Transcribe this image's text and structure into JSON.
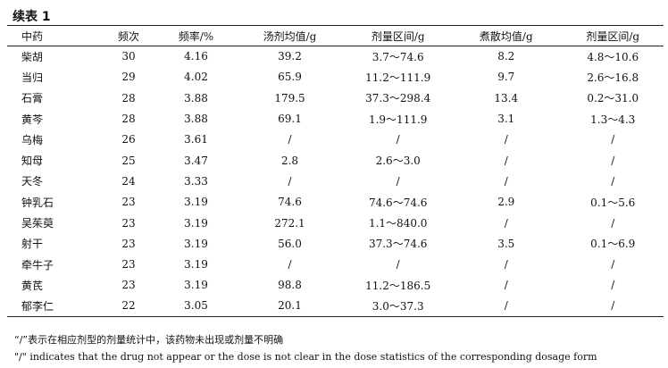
{
  "caption": "续表 1",
  "headers": [
    "中药",
    "频次",
    "频率/%",
    "汤剂均值/g",
    "剂量区间/g",
    "煮散均值/g",
    "剂量区间/g"
  ],
  "rows": [
    [
      "柴胡",
      "30",
      "4.16",
      "39.2",
      "3.7～74.6",
      "8.2",
      "4.8～10.6"
    ],
    [
      "当归",
      "29",
      "4.02",
      "65.9",
      "11.2～111.9",
      "9.7",
      "2.6～16.8"
    ],
    [
      "石膏",
      "28",
      "3.88",
      "179.5",
      "37.3～298.4",
      "13.4",
      "0.2～31.0"
    ],
    [
      "黄芩",
      "28",
      "3.88",
      "69.1",
      "1.9～111.9",
      "3.1",
      "1.3～4.3"
    ],
    [
      "乌梅",
      "26",
      "3.61",
      "/",
      "/",
      "/",
      "/"
    ],
    [
      "知母",
      "25",
      "3.47",
      "2.8",
      "2.6～3.0",
      "/",
      "/"
    ],
    [
      "天冬",
      "24",
      "3.33",
      "/",
      "/",
      "/",
      "/"
    ],
    [
      "钟乳石",
      "23",
      "3.19",
      "74.6",
      "74.6～74.6",
      "2.9",
      "0.1～5.6"
    ],
    [
      "吴茱萸",
      "23",
      "3.19",
      "272.1",
      "1.1～840.0",
      "/",
      "/"
    ],
    [
      "射干",
      "23",
      "3.19",
      "56.0",
      "37.3～74.6",
      "3.5",
      "0.1～6.9"
    ],
    [
      "牵牛子",
      "23",
      "3.19",
      "/",
      "/",
      "/",
      "/"
    ],
    [
      "黄芪",
      "23",
      "3.19",
      "98.8",
      "11.2～186.5",
      "/",
      "/"
    ],
    [
      "郁李仁",
      "22",
      "3.05",
      "20.1",
      "3.0～37.3",
      "/",
      "/"
    ]
  ],
  "notes": {
    "zh": "“/”表示在相应剂型的剂量统计中，该药物未出现或剂量不明确",
    "en": "\"/\" indicates that the drug not appear or the dose is not clear in the dose statistics of the corresponding dosage form"
  }
}
